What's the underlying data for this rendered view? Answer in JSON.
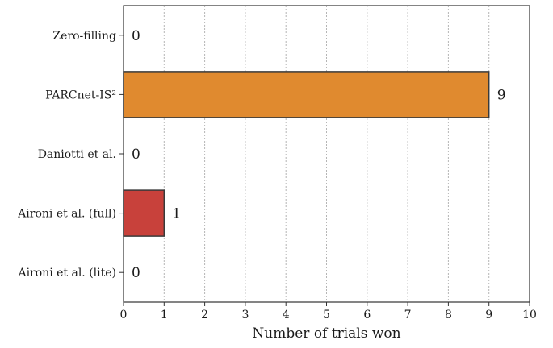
{
  "chart_data": {
    "type": "bar",
    "orientation": "horizontal",
    "categories": [
      "Zero-filling",
      "PARCnet-IS²",
      "Daniotti et al.",
      "Aironi et al. (full)",
      "Aironi et al. (lite)"
    ],
    "values": [
      0,
      9,
      0,
      1,
      0
    ],
    "colors": [
      "#e08a2f",
      "#e08a2f",
      "#c8413b",
      "#c8413b",
      "#c8413b"
    ],
    "xlabel": "Number of trials won",
    "ylabel": "",
    "title": "",
    "xlim": [
      0,
      10
    ],
    "xticks": [
      "0",
      "1",
      "2",
      "3",
      "4",
      "5",
      "6",
      "7",
      "8",
      "9",
      "10"
    ],
    "grid": "vertical dotted",
    "legend": "none"
  }
}
